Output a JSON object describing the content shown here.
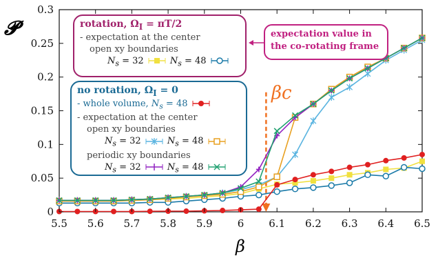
{
  "chart_data": {
    "type": "line",
    "ylabel": "𝓟",
    "xlabel": "β",
    "xlim": [
      5.5,
      6.5
    ],
    "ylim": [
      0,
      0.3
    ],
    "xticks": [
      "5.5",
      "5.6",
      "5.7",
      "5.8",
      "5.9",
      "6",
      "6.1",
      "6.2",
      "6.3",
      "6.4",
      "6.5"
    ],
    "yticks": [
      "0",
      "0.05",
      "0.1",
      "0.15",
      "0.2",
      "0.25",
      "0.3"
    ],
    "x": [
      5.5,
      5.55,
      5.6,
      5.65,
      5.7,
      5.75,
      5.8,
      5.85,
      5.9,
      5.95,
      6.0,
      6.05,
      6.07,
      6.1,
      6.15,
      6.2,
      6.25,
      6.3,
      6.35,
      6.4,
      6.45,
      6.5
    ],
    "series": [
      {
        "name": "rot_center_open_Ns32",
        "color": "#f0e040",
        "marker": "square-filled",
        "values": [
          0.016,
          0.016,
          0.016,
          0.016,
          0.017,
          0.018,
          0.019,
          0.02,
          0.022,
          0.024,
          0.027,
          0.034,
          null,
          0.041,
          0.043,
          0.046,
          0.05,
          0.055,
          0.058,
          0.063,
          0.065,
          0.075
        ]
      },
      {
        "name": "rot_center_open_Ns48",
        "color": "#1a7aa8",
        "marker": "circle-open",
        "values": [
          0.013,
          0.013,
          0.013,
          0.013,
          0.013,
          0.014,
          0.014,
          0.016,
          0.018,
          0.02,
          0.023,
          0.025,
          null,
          0.03,
          0.034,
          0.036,
          0.039,
          0.043,
          0.055,
          0.053,
          0.066,
          0.064
        ]
      },
      {
        "name": "rot_rotframe_Ns32",
        "color": "#5ab4e0",
        "marker": "asterisk",
        "values": [
          0.017,
          0.017,
          0.017,
          0.017,
          0.018,
          0.019,
          0.021,
          0.023,
          0.025,
          0.028,
          0.033,
          0.04,
          null,
          0.052,
          0.085,
          0.135,
          0.17,
          0.185,
          0.205,
          0.225,
          0.24,
          0.255
        ]
      },
      {
        "name": "rot_rotframe_Ns48",
        "color": "#e8a020",
        "marker": "square-open",
        "values": [
          0.016,
          0.016,
          0.016,
          0.016,
          0.017,
          0.018,
          0.02,
          0.022,
          0.024,
          0.026,
          0.03,
          0.037,
          null,
          0.052,
          0.14,
          0.16,
          0.182,
          0.2,
          0.215,
          0.228,
          0.243,
          0.258
        ]
      },
      {
        "name": "norot_whole_Ns48",
        "color": "#e02020",
        "marker": "circle-filled",
        "values": [
          0.0005,
          0.0005,
          0.0005,
          0.0005,
          0.0005,
          0.0008,
          0.001,
          0.001,
          0.0015,
          0.002,
          0.003,
          0.004,
          null,
          0.04,
          0.048,
          0.055,
          0.06,
          0.066,
          0.07,
          0.076,
          0.08,
          0.085
        ]
      },
      {
        "name": "norot_periodic_Ns32",
        "color": "#9020c0",
        "marker": "plus",
        "values": [
          0.017,
          0.017,
          0.017,
          0.017,
          0.018,
          0.019,
          0.021,
          0.023,
          0.025,
          0.028,
          0.037,
          0.063,
          null,
          0.113,
          0.14,
          0.16,
          0.18,
          0.198,
          0.213,
          0.228,
          0.243,
          0.258
        ]
      },
      {
        "name": "norot_periodic_Ns48",
        "color": "#20a070",
        "marker": "cross",
        "values": [
          0.017,
          0.017,
          0.017,
          0.017,
          0.018,
          0.019,
          0.021,
          0.023,
          0.025,
          0.028,
          0.035,
          0.045,
          null,
          0.12,
          0.143,
          0.16,
          0.18,
          0.198,
          0.213,
          0.228,
          0.243,
          0.258
        ]
      }
    ],
    "betac": {
      "x": 6.07,
      "label": "βc",
      "color": "#f07020"
    }
  },
  "legend_rot": {
    "title": "rotation, Ω",
    "title_sub": "I",
    "title_val": " = πT/2",
    "line1": "- expectation at the center",
    "line2": "open xy boundaries",
    "entry_a": "N",
    "entry_a_sub": "s",
    "entry_a_val": " = 32",
    "entry_b": "N",
    "entry_b_sub": "s",
    "entry_b_val": " = 48",
    "color": "#a0206a"
  },
  "legend_norot": {
    "title": "no rotation, Ω",
    "title_sub": "I",
    "title_val": " = 0",
    "whole_line": "- whole volume,",
    "whole_n": "N",
    "whole_n_sub": "s",
    "whole_n_val": " = 48",
    "line_center": "- expectation at the center",
    "line_open": "open xy boundaries",
    "line_periodic": "periodic xy boundaries",
    "n32": "N",
    "n32_sub": "s",
    "n32_val": " = 32",
    "n48": "N",
    "n48_sub": "s",
    "n48_val": " = 48",
    "color": "#1a6a94"
  },
  "note": {
    "line1": "expectation value in",
    "line2": "the co-rotating frame",
    "color": "#c02080"
  }
}
